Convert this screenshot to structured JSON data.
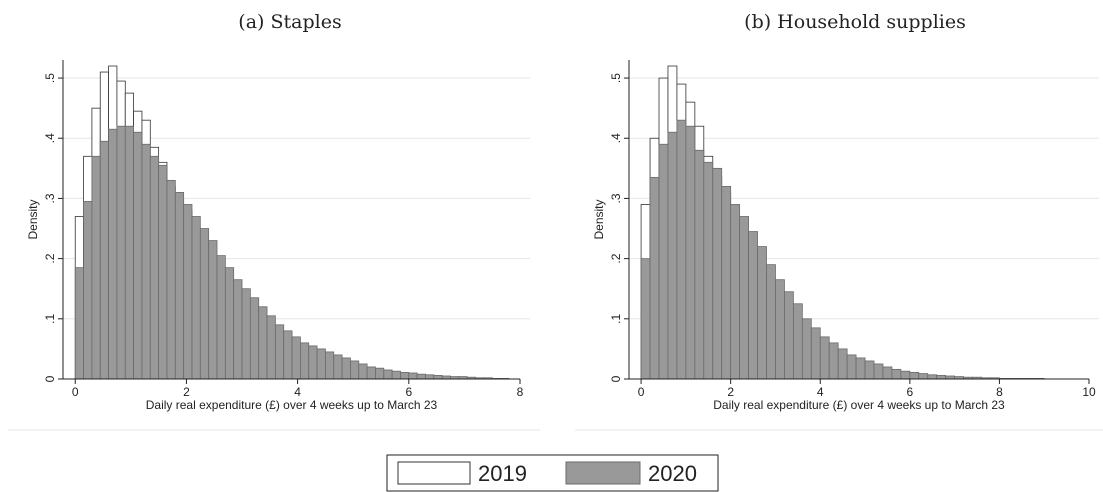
{
  "chart_data": [
    {
      "type": "histogram",
      "title": "(a) Staples",
      "xlabel": "Daily real expenditure (£) over 4 weeks up to March 23",
      "ylabel": "Density",
      "xlim": [
        -0.22,
        8
      ],
      "xticks": [
        0,
        2,
        4,
        6,
        8
      ],
      "ylim": [
        0,
        0.53
      ],
      "yticks": [
        0,
        {
          "value": 0.1,
          "label": ".1"
        },
        {
          "value": 0.2,
          "label": ".2"
        },
        {
          "value": 0.3,
          "label": ".3"
        },
        {
          "value": 0.4,
          "label": ".4"
        },
        {
          "value": 0.5,
          "label": ".5"
        }
      ],
      "grid": true,
      "bins": [
        0,
        0.15,
        0.3,
        0.45,
        0.6,
        0.75,
        0.9,
        1.05,
        1.2,
        1.35,
        1.5,
        1.65,
        1.8,
        1.95,
        2.1,
        2.25,
        2.4,
        2.55,
        2.7,
        2.85,
        3,
        3.15,
        3.3,
        3.45,
        3.6,
        3.75,
        3.9,
        4.05,
        4.2,
        4.35,
        4.5,
        4.65,
        4.8,
        4.95,
        5.1,
        5.25,
        5.4,
        5.55,
        5.7,
        5.85,
        6,
        6.15,
        6.3,
        6.45,
        6.6,
        6.75,
        6.9,
        7.05,
        7.2,
        7.35,
        7.5,
        7.65,
        7.8
      ],
      "series": [
        {
          "name": "2019",
          "color": "#ffffff",
          "values": [
            0.27,
            0.37,
            0.45,
            0.51,
            0.52,
            0.495,
            0.475,
            0.445,
            0.43,
            0.385,
            0.36,
            0.32,
            0.3,
            0.28,
            0.24,
            0.22,
            0.18,
            0.16,
            0.135,
            0.115,
            0.095,
            0.08,
            0.065,
            0.055,
            0.04,
            0.035,
            0.025,
            0.02,
            0.016,
            0.013,
            0.01,
            0.008,
            0.006,
            0.005,
            0.004,
            0.003,
            0.002,
            0.002,
            0.002,
            0.001,
            0.001,
            0.001,
            0.001,
            0.001,
            0.001,
            0.001,
            0,
            0,
            0,
            0,
            0,
            0
          ]
        },
        {
          "name": "2020",
          "color": "#999999",
          "values": [
            0.185,
            0.295,
            0.37,
            0.395,
            0.415,
            0.42,
            0.42,
            0.41,
            0.39,
            0.37,
            0.355,
            0.33,
            0.31,
            0.29,
            0.27,
            0.25,
            0.23,
            0.205,
            0.185,
            0.165,
            0.15,
            0.135,
            0.12,
            0.105,
            0.09,
            0.08,
            0.07,
            0.06,
            0.055,
            0.05,
            0.045,
            0.04,
            0.035,
            0.03,
            0.025,
            0.02,
            0.018,
            0.015,
            0.013,
            0.011,
            0.01,
            0.008,
            0.007,
            0.006,
            0.005,
            0.004,
            0.004,
            0.003,
            0.002,
            0.002,
            0.001,
            0.001
          ]
        }
      ]
    },
    {
      "type": "histogram",
      "title": "(b) Household supplies",
      "xlabel": "Daily real expenditure (£) over 4 weeks up to March 23",
      "ylabel": "Density",
      "xlim": [
        -0.27,
        10
      ],
      "xticks": [
        0,
        2,
        4,
        6,
        8,
        10
      ],
      "ylim": [
        0,
        0.53
      ],
      "yticks": [
        0,
        {
          "value": 0.1,
          "label": ".1"
        },
        {
          "value": 0.2,
          "label": ".2"
        },
        {
          "value": 0.3,
          "label": ".3"
        },
        {
          "value": 0.4,
          "label": ".4"
        },
        {
          "value": 0.5,
          "label": ".5"
        }
      ],
      "grid": true,
      "bins": [
        0,
        0.2,
        0.4,
        0.6,
        0.8,
        1,
        1.2,
        1.4,
        1.6,
        1.8,
        2,
        2.2,
        2.4,
        2.6,
        2.8,
        3,
        3.2,
        3.4,
        3.6,
        3.8,
        4,
        4.2,
        4.4,
        4.6,
        4.8,
        5,
        5.2,
        5.4,
        5.6,
        5.8,
        6,
        6.2,
        6.4,
        6.6,
        6.8,
        7,
        7.2,
        7.4,
        7.6,
        7.8,
        8,
        8.2,
        8.4,
        8.6,
        8.8,
        9,
        9.2,
        9.4,
        9.6,
        9.8,
        10
      ],
      "series": [
        {
          "color": "#ffffff",
          "values": [
            0.29,
            0.4,
            0.5,
            0.52,
            0.49,
            0.46,
            0.42,
            0.37,
            0.335,
            0.31,
            0.265,
            0.23,
            0.2,
            0.17,
            0.14,
            0.115,
            0.09,
            0.075,
            0.06,
            0.05,
            0.04,
            0.03,
            0.025,
            0.02,
            0.015,
            0.012,
            0.01,
            0.008,
            0.006,
            0.005,
            0.004,
            0.003,
            0.003,
            0.002,
            0.002,
            0.001,
            0.001,
            0.001,
            0.001,
            0.001,
            0.001,
            0,
            0,
            0,
            0,
            0,
            0,
            0,
            0,
            0
          ]
        },
        {
          "color": "#999999",
          "values": [
            0.2,
            0.335,
            0.39,
            0.41,
            0.43,
            0.42,
            0.38,
            0.36,
            0.35,
            0.32,
            0.29,
            0.27,
            0.245,
            0.22,
            0.19,
            0.165,
            0.145,
            0.125,
            0.1,
            0.085,
            0.07,
            0.06,
            0.05,
            0.04,
            0.035,
            0.03,
            0.025,
            0.02,
            0.016,
            0.013,
            0.011,
            0.009,
            0.007,
            0.006,
            0.005,
            0.004,
            0.003,
            0.003,
            0.002,
            0.002,
            0.001,
            0.001,
            0.001,
            0.001,
            0.001,
            0,
            0,
            0,
            0,
            0
          ]
        }
      ]
    }
  ]
}
